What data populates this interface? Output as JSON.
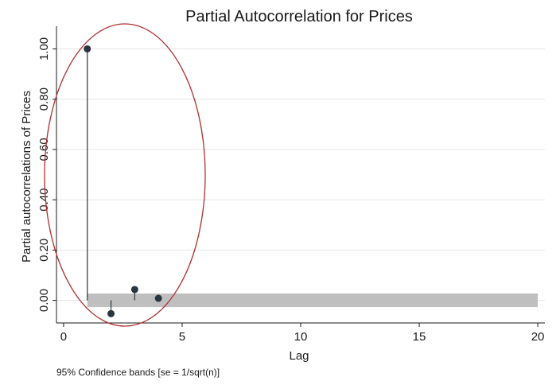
{
  "chart_data": {
    "type": "scatter",
    "title": "Partial Autocorrelation for Prices",
    "xlabel": "Lag",
    "ylabel": "Partial autocorrelations of Prices",
    "note": "95% Confidence bands [se = 1/sqrt(n)]",
    "xlim": [
      -0.3,
      20.3
    ],
    "ylim": [
      -0.09,
      1.09
    ],
    "x_ticks": [
      0,
      5,
      10,
      15,
      20
    ],
    "y_ticks": [
      0.0,
      0.2,
      0.4,
      0.6,
      0.8,
      1.0
    ],
    "y_tick_labels": [
      "0.00",
      "0.20",
      "0.40",
      "0.60",
      "0.80",
      "1.00"
    ],
    "grid": true,
    "series": [
      {
        "x": [
          1,
          2,
          3,
          4
        ],
        "values": [
          1.0,
          -0.053,
          0.043,
          0.008
        ]
      }
    ],
    "confidence_band": {
      "lag_start": 1,
      "lag_end": 20,
      "lower": -0.027,
      "upper": 0.027
    },
    "colors": {
      "band": "#bfbfbf",
      "spike": "#2a3540",
      "marker": "#2a3540",
      "grid": "#e6e6e6",
      "annotation_ellipse": "#b03030"
    }
  }
}
